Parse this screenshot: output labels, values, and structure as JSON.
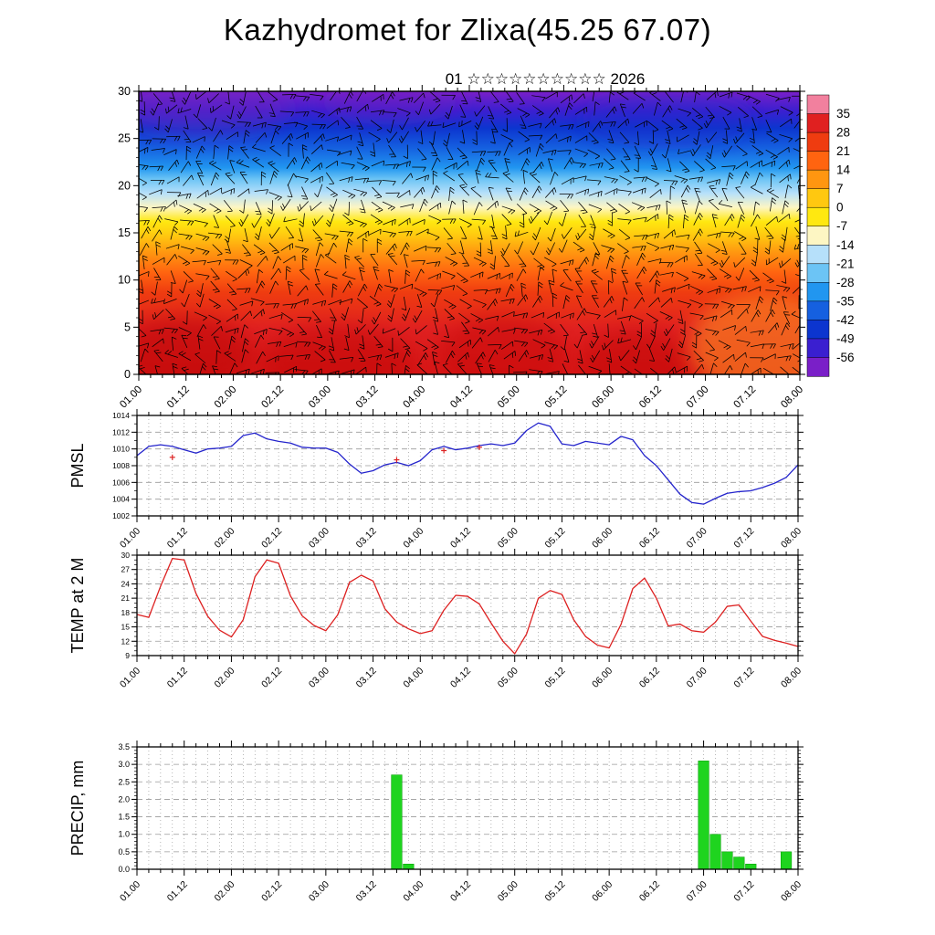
{
  "title": "Kazhydromet for Zlixa(45.25 67.07)",
  "subtitle": "01 ☆☆☆☆☆☆☆☆☆☆ 2026",
  "chart_data": {
    "type": "meteogram",
    "time_tick_labels": [
      "01.00",
      "01.12",
      "02.00",
      "02.12",
      "03.00",
      "03.12",
      "04.00",
      "04.12",
      "05.00",
      "05.12",
      "06.00",
      "06.12",
      "07.00",
      "07.12",
      "08.00"
    ],
    "time_step_hours": 3,
    "cross_section": {
      "yticks": [
        0,
        5,
        10,
        15,
        20,
        25,
        30
      ],
      "ymax": 30,
      "colorbar": {
        "labels": [
          35,
          28,
          21,
          14,
          7,
          0,
          -7,
          -14,
          -21,
          -28,
          -35,
          -42,
          -49,
          -56
        ],
        "colors_top_to_bottom": [
          "#f2809e",
          "#e02020",
          "#ef3c10",
          "#ff6410",
          "#ff9610",
          "#ffc810",
          "#ffe810",
          "#fdf6c3",
          "#b6e0fa",
          "#6cc4f5",
          "#2196f0",
          "#1560e0",
          "#0c35cf",
          "#3a1fd0",
          "#7a1fc8"
        ]
      },
      "field_gradient_top_to_bottom": [
        {
          "pos": 0,
          "color": "#7a1fc8"
        },
        {
          "pos": 0.07,
          "color": "#3a1fd0"
        },
        {
          "pos": 0.13,
          "color": "#0c35cf"
        },
        {
          "pos": 0.2,
          "color": "#1560e0"
        },
        {
          "pos": 0.27,
          "color": "#2196f0"
        },
        {
          "pos": 0.31,
          "color": "#6cc4f5"
        },
        {
          "pos": 0.36,
          "color": "#b6e0fa"
        },
        {
          "pos": 0.41,
          "color": "#fdf6c3"
        },
        {
          "pos": 0.46,
          "color": "#ffe810"
        },
        {
          "pos": 0.51,
          "color": "#ffc810"
        },
        {
          "pos": 0.57,
          "color": "#ff9610"
        },
        {
          "pos": 0.64,
          "color": "#ff6410"
        },
        {
          "pos": 0.71,
          "color": "#ef3c10"
        },
        {
          "pos": 0.84,
          "color": "#e02020"
        },
        {
          "pos": 1,
          "color": "#d81616"
        }
      ]
    },
    "panels": {
      "pmsl": {
        "label": "PMSL",
        "color": "#2424cc",
        "ylim": [
          1002,
          1014
        ],
        "yticks": [
          1002,
          1004,
          1006,
          1008,
          1010,
          1012,
          1014
        ],
        "values": [
          1009.2,
          1010.3,
          1010.5,
          1010.3,
          1009.9,
          1009.5,
          1010.0,
          1010.1,
          1010.3,
          1011.6,
          1011.9,
          1011.2,
          1010.9,
          1010.7,
          1010.2,
          1010.1,
          1010.1,
          1009.6,
          1008.2,
          1007.1,
          1007.4,
          1008.1,
          1008.4,
          1008.0,
          1008.6,
          1009.9,
          1010.3,
          1009.9,
          1010.1,
          1010.4,
          1010.6,
          1010.4,
          1010.7,
          1012.2,
          1013.1,
          1012.7,
          1010.6,
          1010.4,
          1010.9,
          1010.7,
          1010.5,
          1011.5,
          1011.1,
          1009.2,
          1008.0,
          1006.3,
          1004.6,
          1003.6,
          1003.4,
          1004.1,
          1004.7,
          1004.9,
          1005.0,
          1005.4,
          1005.9,
          1006.6,
          1008.1
        ],
        "obs_markers": [
          {
            "i": 3,
            "v": 1009.0
          },
          {
            "i": 22,
            "v": 1008.7
          },
          {
            "i": 26,
            "v": 1009.8
          },
          {
            "i": 29,
            "v": 1010.2
          }
        ],
        "obs_color": "#dd2222"
      },
      "temp": {
        "label": "TEMP at 2 M",
        "color": "#dd2020",
        "ylim": [
          9,
          30
        ],
        "yticks": [
          9,
          12,
          15,
          18,
          21,
          24,
          27,
          30
        ],
        "values": [
          17.6,
          17.0,
          23.5,
          29.3,
          29.0,
          22.0,
          17.2,
          14.3,
          12.9,
          16.5,
          25.5,
          29.0,
          28.3,
          21.5,
          17.3,
          15.3,
          14.2,
          17.5,
          24.3,
          25.8,
          24.6,
          18.8,
          16.0,
          14.6,
          13.6,
          14.2,
          18.5,
          21.6,
          21.4,
          19.8,
          15.8,
          12.0,
          9.4,
          13.5,
          21.0,
          22.6,
          21.8,
          16.5,
          13.0,
          11.2,
          10.6,
          15.5,
          23.0,
          25.2,
          21.0,
          15.2,
          15.6,
          14.2,
          13.9,
          16.0,
          19.3,
          19.6,
          16.2,
          13.0,
          12.2,
          11.6,
          10.9
        ]
      },
      "precip": {
        "label": "PRECIP, mm",
        "color": "#1fd41f",
        "ylim": [
          0,
          3.5
        ],
        "yticks": [
          0,
          0.5,
          1,
          1.5,
          2,
          2.5,
          3,
          3.5
        ],
        "values": [
          0,
          0,
          0,
          0,
          0,
          0,
          0,
          0,
          0,
          0,
          0,
          0,
          0,
          0,
          0,
          0,
          0,
          0,
          0,
          0,
          0,
          0,
          2.7,
          0.15,
          0,
          0,
          0,
          0,
          0,
          0,
          0,
          0,
          0,
          0,
          0,
          0,
          0,
          0,
          0,
          0,
          0,
          0,
          0,
          0,
          0,
          0,
          0,
          0,
          3.1,
          1.0,
          0.5,
          0.35,
          0.15,
          0,
          0,
          0.5,
          0
        ]
      }
    }
  }
}
